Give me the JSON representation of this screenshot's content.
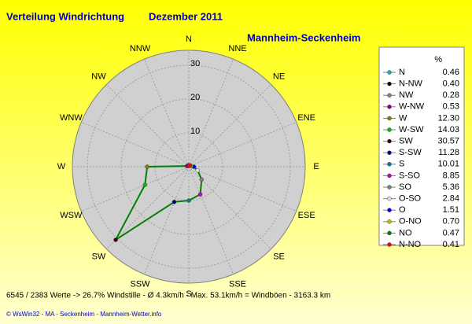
{
  "chart_data": {
    "type": "radar",
    "title": "Verteilung Windrichtung",
    "date": "Dezember 2011",
    "subtitle": "Mannheim-Seckenheim",
    "categories": [
      "N",
      "NNW",
      "NW",
      "WNW",
      "W",
      "WSW",
      "SW",
      "SSW",
      "S",
      "SSE",
      "SE",
      "ESE",
      "E",
      "ENE",
      "NE",
      "NNE"
    ],
    "series": [
      {
        "color": "#008000",
        "values": [
          0.46,
          0.4,
          0.28,
          0.53,
          12.3,
          14.03,
          30.57,
          11.28,
          10.01,
          8.85,
          5.36,
          2.84,
          1.51,
          0.7,
          0.47,
          0.41
        ],
        "value_labels": [
          "0.46",
          "0.40",
          "0.28",
          "0.53",
          "12.30",
          "14.03",
          "30.57",
          "11.28",
          "10.01",
          "8.85",
          "5.36",
          "2.84",
          "1.51",
          "0.70",
          "0.47",
          "0.41"
        ],
        "point_names": [
          "N",
          "N-NW",
          "NW",
          "W-NW",
          "W",
          "W-SW",
          "SW",
          "S-SW",
          "S",
          "S-SO",
          "SO",
          "O-SO",
          "O",
          "O-NO",
          "NO",
          "N-NO"
        ],
        "point_colors": [
          "#00c0c0",
          "#000000",
          "#808080",
          "#800080",
          "#808000",
          "#00c000",
          "#400000",
          "#000080",
          "#008080",
          "#c000c0",
          "#808080",
          "#e0e0e0",
          "#0000ff",
          "#c0c000",
          "#008000",
          "#ff0000"
        ]
      }
    ],
    "legend_header": "%",
    "rlim": [
      0,
      30
    ],
    "rticks": [
      10,
      20,
      30
    ],
    "footer": "6545 / 2383 Werte  -> 26.7% Windstille  -  Ø 4.3km/h  -  Max. 53.1km/h = Windböen  -  3163.3 km",
    "credit": "© WsWin32  -  MA - Seckenheim  -  Mannheim-Wetter.info"
  }
}
